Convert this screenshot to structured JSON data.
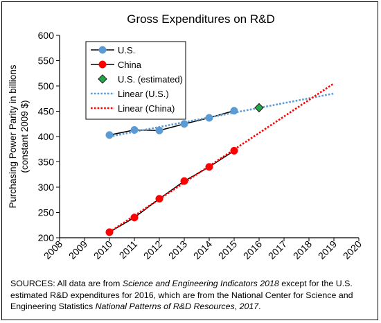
{
  "chart_data": {
    "type": "line",
    "title": "Gross Expenditures on R&D",
    "ylabel_lines": [
      "Purchasing Power Parity  in billions",
      "(constant 2009 $)"
    ],
    "xlabel": "",
    "xlim": [
      2008,
      2020
    ],
    "ylim": [
      200,
      600
    ],
    "x_ticks": [
      "2008",
      "2009",
      "2010",
      "2011",
      "2012",
      "2013",
      "2014",
      "2015",
      "2016",
      "2017",
      "2018",
      "2019",
      "2020"
    ],
    "y_ticks": [
      "200",
      "250",
      "300",
      "350",
      "400",
      "450",
      "500",
      "550",
      "600"
    ],
    "grid": false,
    "legend_position": "top-left",
    "series": [
      {
        "name": "U.S.",
        "style": "line-circle",
        "color": "#000000",
        "marker_color": "#5b9bd5",
        "x": [
          2010,
          2011,
          2012,
          2013,
          2014,
          2015
        ],
        "y": [
          403,
          413,
          412,
          425,
          437,
          451
        ]
      },
      {
        "name": "China",
        "style": "line-circle",
        "color": "#000000",
        "marker_color": "#ff0000",
        "x": [
          2010,
          2011,
          2012,
          2013,
          2014,
          2015
        ],
        "y": [
          211,
          240,
          277,
          312,
          340,
          372
        ]
      },
      {
        "name": "U.S. (estimated)",
        "style": "diamond",
        "marker_color": "#22a84a",
        "x": [
          2016
        ],
        "y": [
          457
        ]
      },
      {
        "name": "Linear (U.S.)",
        "style": "dotted",
        "color": "#5b9bd5",
        "x": [
          2010,
          2019
        ],
        "y": [
          400,
          485
        ]
      },
      {
        "name": "Linear (China)",
        "style": "dotted",
        "color": "#ff0000",
        "x": [
          2010,
          2019
        ],
        "y": [
          211,
          505
        ]
      }
    ]
  },
  "sources": {
    "prefix": "SOURCES: All data are from ",
    "report1": "Science and Engineering Indicators 2018",
    "middle": " except for the U.S. estimated R&D expenditures for 2016, which are from the National Center for Science and Engineering Statistics ",
    "report2": "National Patterns of R&D Resources, 2017",
    "suffix": "."
  }
}
